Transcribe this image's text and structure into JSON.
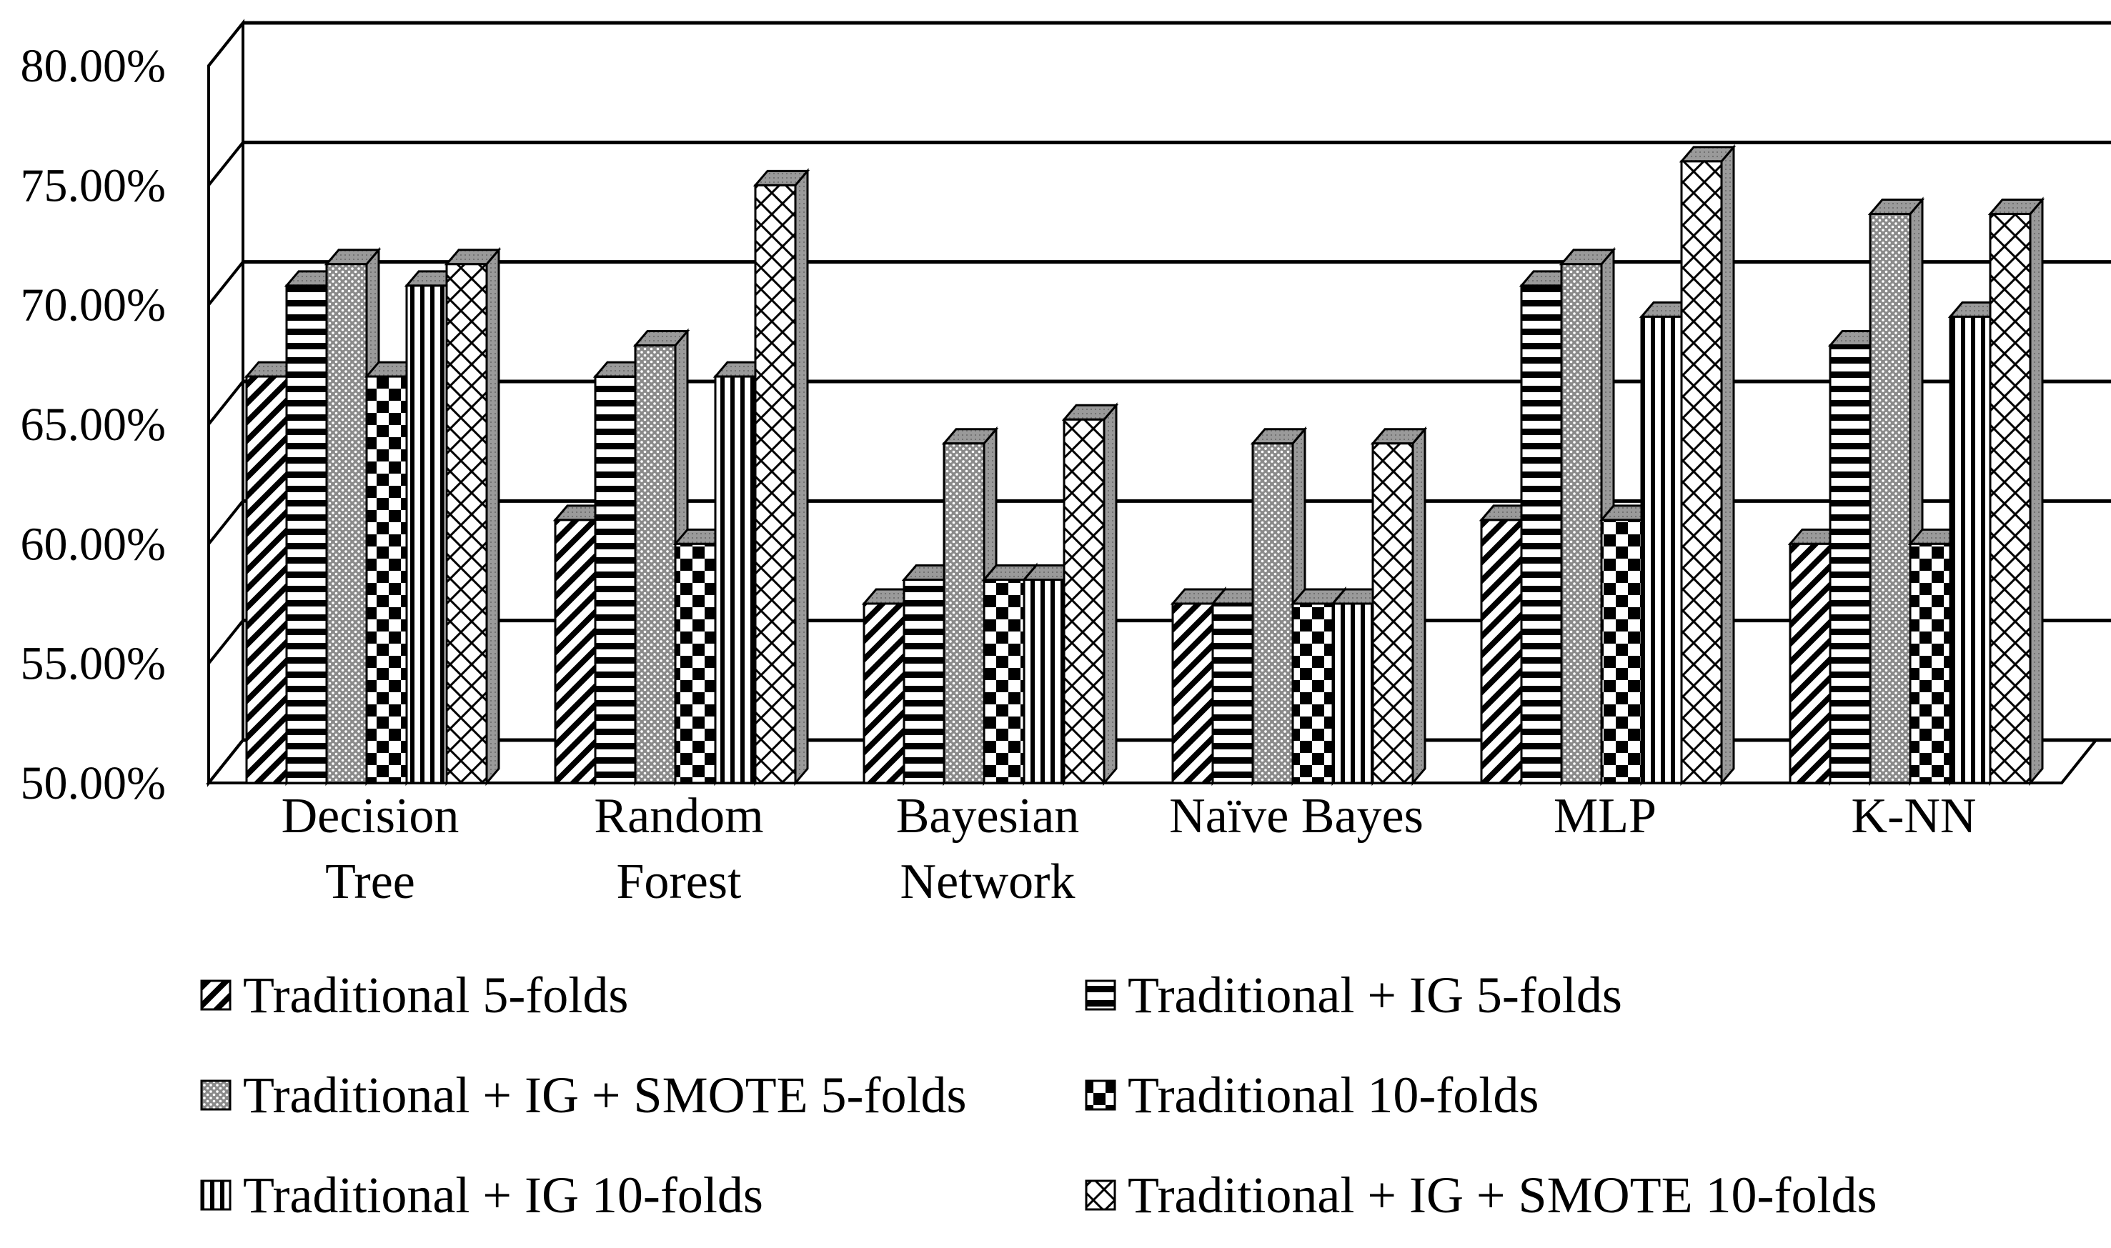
{
  "chart_data": {
    "type": "bar",
    "title": "",
    "xlabel": "",
    "ylabel": "",
    "ylim": [
      50,
      80
    ],
    "ytick_step": 5,
    "ytick_labels": [
      "50.00%",
      "55.00%",
      "60.00%",
      "65.00%",
      "70.00%",
      "75.00%",
      "80.00%"
    ],
    "grid": true,
    "legend_position": "bottom",
    "categories": [
      {
        "line1": "Decision",
        "line2": "Tree"
      },
      {
        "line1": "Random",
        "line2": "Forest"
      },
      {
        "line1": "Bayesian",
        "line2": "Network"
      },
      {
        "line1": "Naïve Bayes",
        "line2": ""
      },
      {
        "line1": "MLP",
        "line2": ""
      },
      {
        "line1": "K-NN",
        "line2": ""
      }
    ],
    "series": [
      {
        "name": "Traditional 5-folds",
        "pattern": "diagonal",
        "values": [
          67.0,
          61.0,
          57.5,
          57.5,
          61.0,
          60.0
        ]
      },
      {
        "name": "Traditional + IG 5-folds",
        "pattern": "horizontal",
        "values": [
          70.8,
          67.0,
          58.5,
          57.5,
          70.8,
          68.3
        ]
      },
      {
        "name": "Traditional + IG + SMOTE 5-folds",
        "pattern": "dotted",
        "values": [
          71.7,
          68.3,
          64.2,
          64.2,
          71.7,
          73.8
        ]
      },
      {
        "name": "Traditional 10-folds",
        "pattern": "checker",
        "values": [
          67.0,
          60.0,
          58.5,
          57.5,
          61.0,
          60.0
        ]
      },
      {
        "name": "Traditional + IG 10-folds",
        "pattern": "vertical",
        "values": [
          70.8,
          67.0,
          58.5,
          57.5,
          69.5,
          69.5
        ]
      },
      {
        "name": "Traditional + IG + SMOTE 10-folds",
        "pattern": "crosshatch",
        "values": [
          71.7,
          75.0,
          65.2,
          64.2,
          76.0,
          73.8
        ]
      }
    ]
  }
}
